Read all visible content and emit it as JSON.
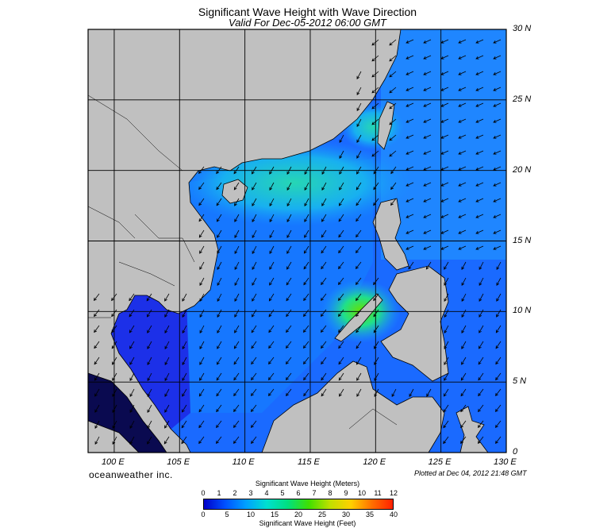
{
  "header": {
    "title": "Significant Wave Height with Wave Direction",
    "subtitle": "Valid For Dec-05-2012 06:00 GMT"
  },
  "axes": {
    "longitude_labels": [
      "100 E",
      "105 E",
      "110 E",
      "115 E",
      "120 E",
      "125 E",
      "130 E"
    ],
    "longitude_values": [
      100,
      105,
      110,
      115,
      120,
      125,
      130
    ],
    "latitude_labels": [
      "30 N",
      "25 N",
      "20 N",
      "15 N",
      "10 N",
      "5 N",
      "0"
    ],
    "latitude_values": [
      30,
      25,
      20,
      15,
      10,
      5,
      0
    ],
    "lon_range": [
      98,
      130
    ],
    "lat_range": [
      0,
      30
    ]
  },
  "footer": {
    "brand": "oceanweather inc.",
    "plotted": "Plotted at Dec 04, 2012 21:48 GMT"
  },
  "colorbar": {
    "meters_title": "Significant Wave Height (Meters)",
    "feet_title": "Significant Wave Height (Feet)",
    "meters_ticks": [
      "0",
      "1",
      "2",
      "3",
      "4",
      "5",
      "6",
      "7",
      "8",
      "9",
      "10",
      "11",
      "12"
    ],
    "feet_ticks": [
      "0",
      "5",
      "10",
      "15",
      "20",
      "25",
      "30",
      "35",
      "40"
    ],
    "colors": [
      "#0000c8",
      "#0050ff",
      "#00a0ff",
      "#00e0d0",
      "#00e080",
      "#40e000",
      "#c0e000",
      "#ffd000",
      "#ff7000",
      "#ff2000"
    ]
  },
  "colors": {
    "land": "#c0c0c0",
    "ocean_low": "#1e3cf0",
    "ocean_mid": "#0a82ff",
    "ocean_high": "#20e0a0",
    "peak": "#50e020",
    "grid": "#000000"
  }
}
